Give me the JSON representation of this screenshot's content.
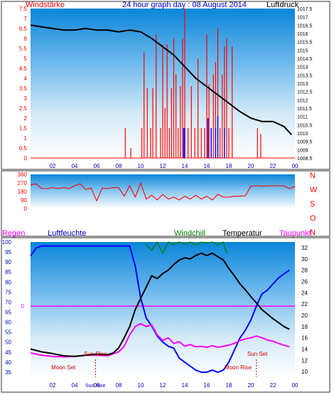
{
  "header": {
    "windstaerke": "Windstärke",
    "title": "24 hour graph day : 08 August 2014",
    "luftdruck": "Luftdruck"
  },
  "labels2": {
    "regen": "Regen",
    "luftfeuchte": "Luftfeuchte",
    "windchill": "Windchill",
    "temperatur": "Temperatur",
    "taupunkt": "Taupunkt"
  },
  "annotations": {
    "sunrise": "Sun Rise",
    "sunset": "Sun Set",
    "moonset": "Moon Set",
    "moonrise": "Moon Rise",
    "sunrise_axis": "Sun Rise"
  },
  "colors": {
    "wind": "#ff0000",
    "gust": "#0000ff",
    "pressure": "#000000",
    "temperature": "#000000",
    "humidity": "#0000ff",
    "dewpoint": "#ff00ff",
    "windchill": "#008000",
    "rain_line": "#ff00ff",
    "direction": "#ff0000",
    "label_red": "#ff0000",
    "label_blue": "#0000cc",
    "label_green": "#008000",
    "label_magenta": "#ff00ff"
  },
  "chart_data": [
    {
      "type": "line",
      "name": "wind-pressure",
      "x_ticks": [
        "02",
        "04",
        "06",
        "08",
        "10",
        "12",
        "14",
        "16",
        "18",
        "20",
        "22",
        "00"
      ],
      "x_range_hours": [
        0,
        24
      ],
      "left_axis": {
        "label": "Windstärke",
        "range": [
          0,
          7.5
        ],
        "ticks": [
          "0",
          "0.5",
          "1",
          "1.5",
          "2",
          "2.5",
          "3",
          "3.5",
          "4",
          "4.5",
          "5",
          "5.5",
          "6",
          "6.5",
          "7",
          "7.5"
        ]
      },
      "right_axis": {
        "label": "Luftdruck",
        "range": [
          1008.5,
          1017.5
        ],
        "ticks": [
          "1008.5",
          "1009",
          "1009.5",
          "1010",
          "1010.5",
          "1011",
          "1011.5",
          "1012",
          "1012.5",
          "1013",
          "1013.5",
          "1014",
          "1014.5",
          "1015",
          "1015.5",
          "1016",
          "1016.5",
          "1017",
          "1017.5"
        ]
      },
      "pressure": {
        "x": [
          0,
          1,
          2,
          3,
          4,
          5,
          6,
          7,
          8,
          9,
          10,
          11,
          12,
          13,
          14,
          15,
          16,
          17,
          18,
          19,
          20,
          21,
          22,
          23,
          23.7
        ],
        "y": [
          1016.5,
          1016.4,
          1016.3,
          1016.2,
          1016.2,
          1016.3,
          1016.2,
          1016.2,
          1016.1,
          1016.2,
          1016.1,
          1015.7,
          1015.2,
          1014.7,
          1014.0,
          1013.3,
          1012.8,
          1012.3,
          1011.8,
          1011.3,
          1010.9,
          1010.7,
          1010.7,
          1010.4,
          1009.9
        ]
      },
      "wind_spikes": {
        "x": [
          8.6,
          9.1,
          10.1,
          10.3,
          10.6,
          10.9,
          11.1,
          11.4,
          11.8,
          12.0,
          12.2,
          12.4,
          12.6,
          12.8,
          13.0,
          13.2,
          13.4,
          13.6,
          13.8,
          14.0,
          14.3,
          14.6,
          14.9,
          15.2,
          15.5,
          15.8,
          16.0,
          16.2,
          16.4,
          16.6,
          16.8,
          17.0,
          17.2,
          17.4,
          17.6,
          17.8,
          18.0,
          18.3,
          20.6,
          20.9
        ],
        "y": [
          1.5,
          0.5,
          1.5,
          5.3,
          3.5,
          1.5,
          3.5,
          6.2,
          1.5,
          5.7,
          2.5,
          5.7,
          1.5,
          3.5,
          6.0,
          4.2,
          1.5,
          3.6,
          6.0,
          7.5,
          1.5,
          3.6,
          1.5,
          5.0,
          1.5,
          1.5,
          6.2,
          3.7,
          1.5,
          4.2,
          4.8,
          6.5,
          1.5,
          4.2,
          5.6,
          6.0,
          1.5,
          5.6,
          1.5,
          1.2
        ]
      },
      "gust_spikes": {
        "x": [
          13.9,
          14.0,
          16.1,
          16.4,
          16.8,
          17.0,
          17.6
        ],
        "y": [
          1.5,
          1.5,
          2.0,
          1.5,
          1.5,
          2.1,
          1.5
        ]
      }
    },
    {
      "type": "line",
      "name": "wind-direction",
      "x_range_hours": [
        0,
        24
      ],
      "y_ticks": [
        "0",
        "90",
        "180",
        "270",
        "360"
      ],
      "compass": [
        "N",
        "W",
        "S",
        "O",
        "N"
      ],
      "x": [
        0,
        0.5,
        1,
        1.5,
        2,
        2.5,
        3,
        3.5,
        4,
        4.5,
        5,
        5.5,
        6,
        6.5,
        7,
        7.5,
        8,
        8.5,
        9,
        9.5,
        10,
        10.5,
        11,
        11.5,
        12,
        12.5,
        13,
        13.5,
        14,
        14.5,
        15,
        15.5,
        16,
        16.5,
        17,
        17.5,
        18,
        18.5,
        19,
        19.5,
        20,
        20.5,
        21,
        21.5,
        22,
        22.5,
        23,
        23.5,
        24
      ],
      "y": [
        250,
        260,
        210,
        210,
        220,
        210,
        220,
        210,
        240,
        260,
        200,
        215,
        80,
        215,
        210,
        220,
        220,
        130,
        240,
        120,
        270,
        100,
        140,
        90,
        150,
        100,
        120,
        90,
        130,
        100,
        140,
        100,
        130,
        90,
        150,
        120,
        120,
        130,
        130,
        135,
        235,
        240,
        235,
        240,
        240,
        240,
        240,
        210,
        230
      ]
    },
    {
      "type": "line",
      "name": "climate",
      "x_range_hours": [
        0,
        24
      ],
      "left_axis": {
        "label": "Luftfeuchte",
        "range": [
          32.5,
          100
        ],
        "ticks": [
          "35",
          "40",
          "45",
          "50",
          "55",
          "60",
          "65",
          "70",
          "75",
          "80",
          "85",
          "90",
          "95",
          "100"
        ]
      },
      "right_axis": {
        "label": "Temperatur",
        "range": [
          9,
          33
        ],
        "ticks": [
          "10",
          "12",
          "14",
          "16",
          "18",
          "20",
          "22",
          "24",
          "26",
          "28",
          "30",
          "32"
        ]
      },
      "rain_marker": {
        "label": "0",
        "value": 68
      },
      "temperature": {
        "x": [
          0,
          1,
          2,
          3,
          4,
          5,
          6,
          7,
          7.5,
          8,
          8.5,
          9,
          9.5,
          10,
          10.5,
          11,
          11.5,
          12,
          12.5,
          13,
          13.5,
          14,
          14.5,
          15,
          15.5,
          16,
          16.5,
          17,
          17.5,
          18,
          18.5,
          19,
          19.5,
          20,
          20.5,
          21,
          21.5,
          22,
          22.5,
          23,
          23.5
        ],
        "y": [
          14.0,
          13.5,
          13.2,
          12.8,
          12.7,
          12.9,
          13.1,
          13.0,
          13.3,
          14.2,
          16.0,
          18.0,
          21.0,
          23.0,
          25.0,
          27.0,
          26.5,
          27.4,
          28.0,
          29.0,
          29.8,
          30.2,
          30.0,
          30.6,
          31.0,
          30.6,
          31.0,
          30.4,
          29.8,
          28.3,
          27.0,
          25.6,
          24.5,
          23.3,
          22.2,
          21.0,
          20.2,
          19.4,
          18.7,
          18.0,
          17.5
        ]
      },
      "humidity": {
        "x": [
          0,
          0.5,
          1,
          2,
          3,
          4,
          5,
          6,
          7,
          8,
          9,
          9.5,
          10,
          10.5,
          11,
          11.5,
          12,
          12.5,
          13,
          13.5,
          14,
          14.5,
          15,
          15.5,
          16,
          16.5,
          17,
          17.5,
          18,
          18.5,
          19,
          19.5,
          20,
          20.5,
          21,
          21.5,
          22,
          22.5,
          23,
          23.5
        ],
        "y": [
          93,
          97,
          98,
          98,
          98,
          98,
          98,
          98,
          98,
          98,
          98,
          88,
          72,
          62,
          58,
          53,
          50,
          48,
          47,
          42,
          40,
          38,
          36,
          35,
          35,
          36,
          35,
          36,
          40,
          46,
          52,
          56,
          61,
          68,
          74,
          76,
          79,
          82,
          84,
          86
        ]
      },
      "dewpoint": {
        "x": [
          0,
          1,
          2,
          3,
          4,
          5,
          6,
          7,
          8,
          8.5,
          9,
          9.5,
          10,
          10.5,
          11,
          11.5,
          12,
          12.5,
          13,
          13.5,
          14,
          14.5,
          15,
          15.5,
          16,
          16.5,
          17,
          17.5,
          18,
          18.5,
          19,
          19.5,
          20,
          20.5,
          21,
          21.5,
          22,
          22.5,
          23,
          23.5
        ],
        "y": [
          13.3,
          12.9,
          12.7,
          12.6,
          12.7,
          12.9,
          12.9,
          12.8,
          13.5,
          14.5,
          16.5,
          18.0,
          18.5,
          18.0,
          18.3,
          16.5,
          15.5,
          16.0,
          15.0,
          15.3,
          14.5,
          14.8,
          14.4,
          14.5,
          14.3,
          14.6,
          14.3,
          14.5,
          14.7,
          15.0,
          15.5,
          15.8,
          16.0,
          16.3,
          16.0,
          15.6,
          15.4,
          15.0,
          14.7,
          14.4
        ]
      },
      "windchill": {
        "x": [
          10.5,
          11.0,
          11.5,
          12.0,
          12.5,
          13.0,
          13.5,
          14.0,
          14.5,
          15.0,
          15.5,
          16.0,
          16.5,
          17.0,
          17.5,
          17.8
        ],
        "y": [
          32.5,
          31.5,
          33.0,
          31.0,
          33.0,
          32.5,
          33.0,
          32.6,
          33.0,
          32.4,
          33.0,
          32.8,
          33.0,
          32.5,
          33.0,
          31.0
        ]
      },
      "markers": {
        "sunrise_hour": 5.9,
        "sunset_hour": 20.5
      }
    }
  ]
}
